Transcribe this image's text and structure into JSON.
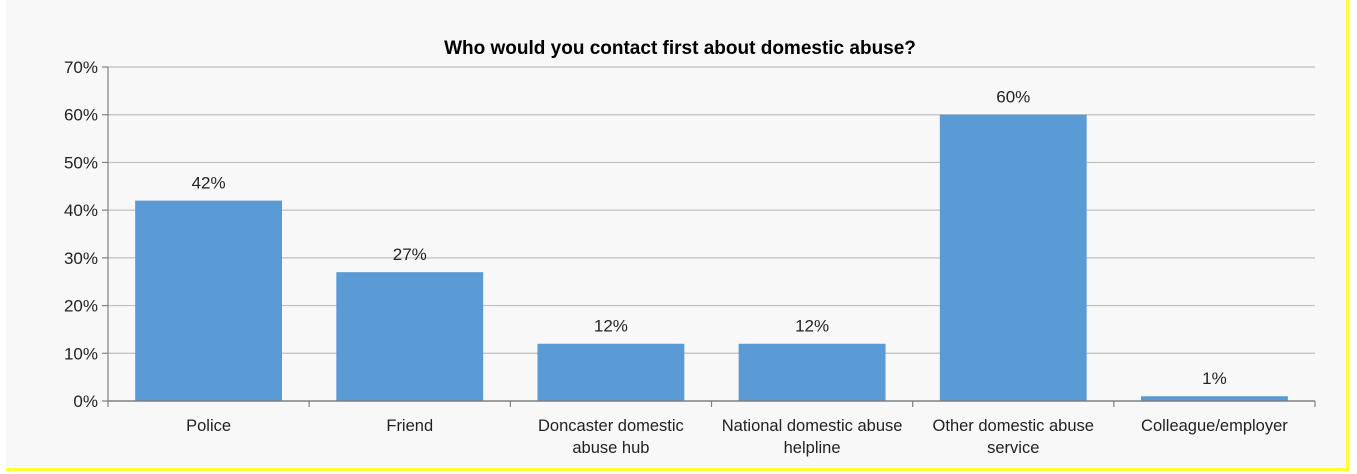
{
  "chart_data": {
    "type": "bar",
    "title": "Who would you contact first about domestic abuse?",
    "categories": [
      [
        "Police"
      ],
      [
        "Friend"
      ],
      [
        "Doncaster domestic",
        "abuse hub"
      ],
      [
        "National domestic abuse",
        "helpline"
      ],
      [
        "Other domestic abuse",
        "service"
      ],
      [
        "Colleague/employer"
      ]
    ],
    "values": [
      42,
      27,
      12,
      12,
      60,
      1
    ],
    "data_labels": [
      "42%",
      "27%",
      "12%",
      "12%",
      "60%",
      "1%"
    ],
    "yticks": [
      "0%",
      "10%",
      "20%",
      "30%",
      "40%",
      "50%",
      "60%",
      "70%"
    ],
    "ylim": [
      0,
      70
    ],
    "grid": true,
    "bar_color": "#5b9bd5",
    "grid_color": "#bfbfbf",
    "frame_color": "#f8f8f8",
    "border_color": "#ffff33"
  }
}
